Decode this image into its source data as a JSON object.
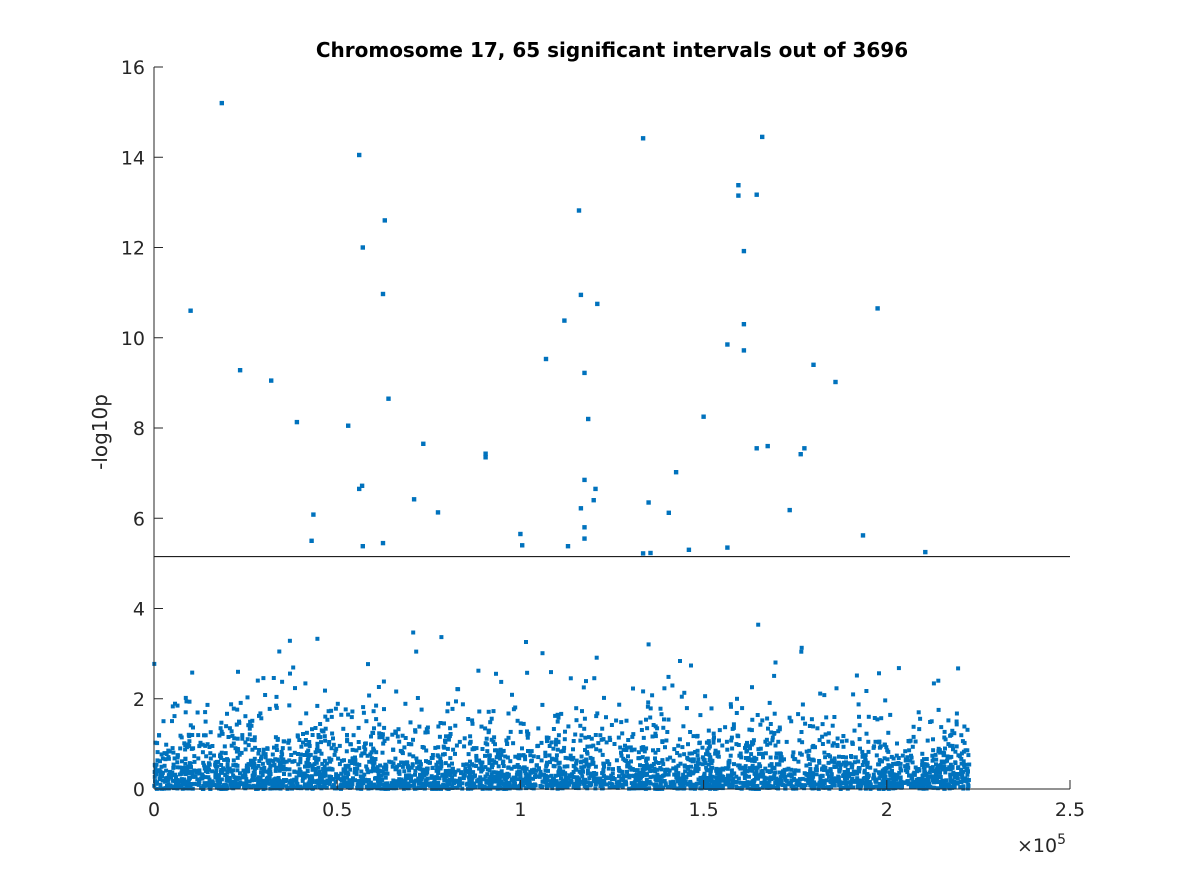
{
  "chart_data": {
    "type": "scatter",
    "title": "Chromosome 17, 65 significant intervals out of 3696",
    "xlabel": "",
    "ylabel": "-log10p",
    "x_scale_label": "×10",
    "x_scale_exponent": "5",
    "xlim": [
      0,
      250000
    ],
    "ylim": [
      0,
      16
    ],
    "x_ticks": [
      0,
      50000,
      100000,
      150000,
      200000,
      250000
    ],
    "x_tick_labels": [
      "0",
      "0.5",
      "1",
      "1.5",
      "2",
      "2.5"
    ],
    "y_ticks": [
      0,
      2,
      4,
      6,
      8,
      10,
      12,
      14,
      16
    ],
    "y_tick_labels": [
      "0",
      "2",
      "4",
      "6",
      "8",
      "10",
      "12",
      "14",
      "16"
    ],
    "threshold": 5.15,
    "grid": false,
    "legend": "none",
    "colors": {
      "points": "#0072BD",
      "threshold": "#000000",
      "axes": "#262626"
    },
    "total_intervals": 3696,
    "x_max_data": 222500,
    "significant_points": [
      [
        18500,
        15.2
      ],
      [
        10000,
        10.6
      ],
      [
        23500,
        9.28
      ],
      [
        32000,
        9.05
      ],
      [
        39000,
        8.13
      ],
      [
        43500,
        6.08
      ],
      [
        43000,
        5.5
      ],
      [
        53000,
        8.05
      ],
      [
        56000,
        14.05
      ],
      [
        57000,
        12.0
      ],
      [
        56000,
        6.65
      ],
      [
        56800,
        6.72
      ],
      [
        57000,
        5.38
      ],
      [
        63000,
        12.6
      ],
      [
        62500,
        10.97
      ],
      [
        64000,
        8.65
      ],
      [
        62500,
        5.45
      ],
      [
        71000,
        6.42
      ],
      [
        73500,
        7.65
      ],
      [
        77500,
        6.13
      ],
      [
        90500,
        7.43
      ],
      [
        90500,
        7.35
      ],
      [
        100000,
        5.65
      ],
      [
        107000,
        9.53
      ],
      [
        112000,
        10.38
      ],
      [
        113000,
        5.38
      ],
      [
        116000,
        12.82
      ],
      [
        116500,
        10.95
      ],
      [
        117500,
        9.22
      ],
      [
        118500,
        8.2
      ],
      [
        117500,
        6.85
      ],
      [
        116500,
        6.22
      ],
      [
        117500,
        5.8
      ],
      [
        117500,
        5.55
      ],
      [
        120500,
        6.65
      ],
      [
        121000,
        10.75
      ],
      [
        120000,
        6.4
      ],
      [
        133500,
        14.42
      ],
      [
        135000,
        6.35
      ],
      [
        135500,
        5.23
      ],
      [
        140500,
        6.12
      ],
      [
        142500,
        7.02
      ],
      [
        150000,
        8.25
      ],
      [
        156500,
        9.85
      ],
      [
        156500,
        5.35
      ],
      [
        159500,
        13.38
      ],
      [
        159500,
        13.15
      ],
      [
        161000,
        11.92
      ],
      [
        161000,
        10.3
      ],
      [
        161000,
        9.72
      ],
      [
        164500,
        13.17
      ],
      [
        166000,
        14.45
      ],
      [
        164500,
        7.55
      ],
      [
        167500,
        7.6
      ],
      [
        173500,
        6.18
      ],
      [
        177500,
        7.55
      ],
      [
        176500,
        7.42
      ],
      [
        180000,
        9.4
      ],
      [
        186000,
        9.02
      ],
      [
        193500,
        5.62
      ],
      [
        197500,
        10.65
      ],
      [
        210500,
        5.25
      ],
      [
        133500,
        5.22
      ],
      [
        100500,
        5.4
      ],
      [
        146000,
        5.3
      ]
    ]
  }
}
